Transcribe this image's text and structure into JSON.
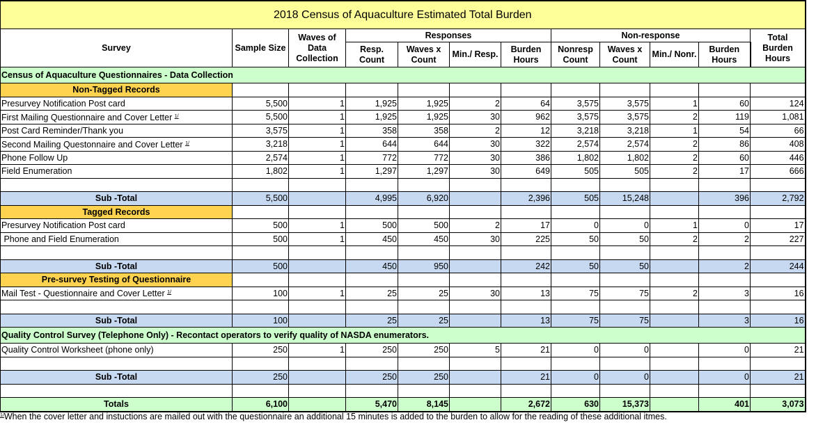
{
  "title": "2018 Census of Aquaculture Estimated Total Burden",
  "headers": {
    "survey": "Survey",
    "sample_size": "Sample Size",
    "waves": "Waves of Data Collection",
    "responses": "Responses",
    "non_response": "Non-response",
    "total": "Total Burden Hours",
    "resp_cols": [
      "Resp. Count",
      "Waves x Count",
      "Min./ Resp.",
      "Burden Hours"
    ],
    "nonresp_cols": [
      "Nonresp Count",
      "Waves x Count",
      "Min./ Nonr.",
      "Burden Hours"
    ]
  },
  "footnote_marker": "1/",
  "rows": [
    {
      "type": "section",
      "label": "Census of Aquaculture Questionnaires - Data Collection"
    },
    {
      "type": "group",
      "label": "Non-Tagged Records",
      "values": [
        "",
        "",
        "",
        "",
        "",
        "",
        "",
        "",
        "",
        "",
        ""
      ]
    },
    {
      "type": "data",
      "label": "Presurvey Notification Post card",
      "values": [
        "5,500",
        "1",
        "1,925",
        "1,925",
        "2",
        "64",
        "3,575",
        "3,575",
        "1",
        "60",
        "124"
      ]
    },
    {
      "type": "data",
      "label": "First Mailing Questionnaire and Cover Letter",
      "note": true,
      "values": [
        "5,500",
        "1",
        "1,925",
        "1,925",
        "30",
        "962",
        "3,575",
        "3,575",
        "2",
        "119",
        "1,081"
      ]
    },
    {
      "type": "data",
      "label": "Post Card Reminder/Thank you",
      "values": [
        "3,575",
        "1",
        "358",
        "358",
        "2",
        "12",
        "3,218",
        "3,218",
        "1",
        "54",
        "66"
      ]
    },
    {
      "type": "data",
      "label": "Second Mailing Questonnaire and Cover Letter",
      "note": true,
      "values": [
        "3,218",
        "1",
        "644",
        "644",
        "30",
        "322",
        "2,574",
        "2,574",
        "2",
        "86",
        "408"
      ]
    },
    {
      "type": "data",
      "label": "Phone Follow Up",
      "values": [
        "2,574",
        "1",
        "772",
        "772",
        "30",
        "386",
        "1,802",
        "1,802",
        "2",
        "60",
        "446"
      ]
    },
    {
      "type": "data",
      "label": "Field Enumeration",
      "values": [
        "1,802",
        "1",
        "1,297",
        "1,297",
        "30",
        "649",
        "505",
        "505",
        "2",
        "17",
        "666"
      ]
    },
    {
      "type": "blank",
      "label": "",
      "values": [
        "",
        "",
        "",
        "",
        "",
        "",
        "",
        "",
        "",
        "",
        ""
      ]
    },
    {
      "type": "subtotal",
      "label": "Sub -Total",
      "values": [
        "5,500",
        "",
        "4,995",
        "6,920",
        "",
        "2,396",
        "505",
        "15,248",
        "",
        "396",
        "2,792"
      ]
    },
    {
      "type": "group",
      "label": "Tagged Records",
      "values": [
        "",
        "",
        "",
        "",
        "",
        "",
        "",
        "",
        "",
        "",
        ""
      ]
    },
    {
      "type": "data",
      "label": "Presurvey Notification Post card",
      "values": [
        "500",
        "1",
        "500",
        "500",
        "2",
        "17",
        "0",
        "0",
        "1",
        "0",
        "17"
      ]
    },
    {
      "type": "data",
      "label": " Phone and Field Enumeration",
      "values": [
        "500",
        "1",
        "450",
        "450",
        "30",
        "225",
        "50",
        "50",
        "2",
        "2",
        "227"
      ]
    },
    {
      "type": "blank",
      "label": "",
      "values": [
        "",
        "",
        "",
        "",
        "",
        "",
        "",
        "",
        "",
        "",
        ""
      ]
    },
    {
      "type": "subtotal",
      "label": "Sub -Total",
      "values": [
        "500",
        "",
        "450",
        "950",
        "",
        "242",
        "50",
        "50",
        "",
        "2",
        "244"
      ]
    },
    {
      "type": "group",
      "label": "Pre-survey Testing of Questionnaire",
      "values": [
        "",
        "",
        "",
        "",
        "",
        "",
        "",
        "",
        "",
        "",
        ""
      ]
    },
    {
      "type": "data",
      "label": "Mail Test - Questionnaire and Cover Letter",
      "note": true,
      "values": [
        "100",
        "1",
        "25",
        "25",
        "30",
        "13",
        "75",
        "75",
        "2",
        "3",
        "16"
      ]
    },
    {
      "type": "blank",
      "label": "",
      "values": [
        "",
        "",
        "",
        "",
        "",
        "",
        "",
        "",
        "",
        "",
        ""
      ]
    },
    {
      "type": "subtotal",
      "label": "Sub -Total",
      "values": [
        "100",
        "",
        "25",
        "25",
        "",
        "13",
        "75",
        "75",
        "",
        "3",
        "16"
      ]
    },
    {
      "type": "section",
      "label": "Quality Control Survey (Telephone Only) - Recontact operators to verify quality of NASDA enumerators."
    },
    {
      "type": "data",
      "label": "Quality Control Worksheet (phone only)",
      "values": [
        "250",
        "1",
        "250",
        "250",
        "5",
        "21",
        "0",
        "0",
        "",
        "0",
        "21"
      ]
    },
    {
      "type": "blank",
      "label": "",
      "values": [
        "",
        "",
        "",
        "",
        "",
        "",
        "",
        "",
        "",
        "",
        ""
      ]
    },
    {
      "type": "subtotal",
      "label": "Sub -Total",
      "values": [
        "250",
        "",
        "250",
        "250",
        "",
        "21",
        "0",
        "0",
        "",
        "0",
        "21"
      ]
    },
    {
      "type": "blank",
      "label": "",
      "values": [
        "",
        "",
        "",
        "",
        "",
        "",
        "",
        "",
        "",
        "",
        ""
      ]
    },
    {
      "type": "totals",
      "label": "Totals",
      "values": [
        "6,100",
        "",
        "5,470",
        "8,145",
        "",
        "2,672",
        "630",
        "15,373",
        "",
        "401",
        "3,073"
      ]
    }
  ],
  "footnote": {
    "marker": "1/",
    "text": "When the cover letter and instuctions are mailed out with the questionnaire an additional 15 minutes is added to the burden to allow for the reading of these additional itmes."
  }
}
